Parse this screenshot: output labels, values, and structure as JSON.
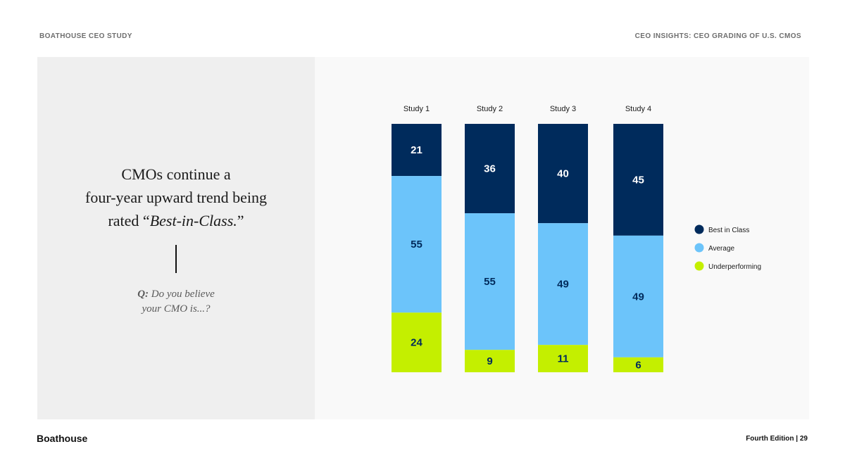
{
  "header": {
    "left": "BOATHOUSE CEO STUDY",
    "right": "CEO INSIGHTS: CEO GRADING OF U.S. CMOs"
  },
  "left_panel": {
    "headline_line1": "CMOs continue a",
    "headline_line2": "four-year upward trend being",
    "headline_line3_prefix": "rated “",
    "headline_line3_emph": "Best-in-Class.",
    "headline_line3_suffix": "”",
    "question_label": "Q:",
    "question_line1": " Do you believe",
    "question_line2": "your CMO is...?"
  },
  "footer": {
    "brand": "Boathouse",
    "edition": "Fourth Edition | ",
    "page": "29"
  },
  "colors": {
    "best": "#002b5c",
    "average": "#6cc4fa",
    "under": "#c4ef00",
    "label_light": "#ffffff",
    "label_dark": "#002b5c"
  },
  "chart_data": {
    "type": "bar",
    "stacked": true,
    "categories": [
      "Study 1",
      "Study 2",
      "Study 3",
      "Study 4"
    ],
    "series": [
      {
        "name": "Best in Class",
        "key": "best",
        "values": [
          21,
          36,
          40,
          45
        ]
      },
      {
        "name": "Average",
        "key": "average",
        "values": [
          55,
          55,
          49,
          49
        ]
      },
      {
        "name": "Underperforming",
        "key": "under",
        "values": [
          24,
          9,
          11,
          6
        ]
      }
    ],
    "ylim": [
      0,
      100
    ],
    "legend_position": "right"
  }
}
